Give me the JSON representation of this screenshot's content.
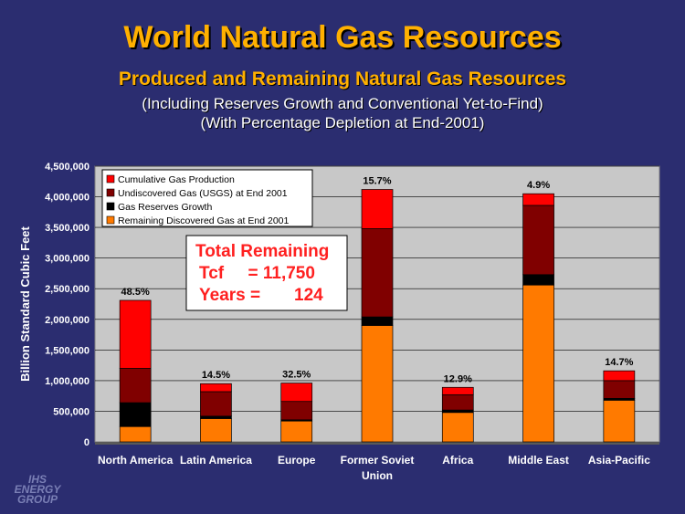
{
  "header": {
    "title": "World Natural Gas Resources",
    "subtitle": "Produced and Remaining Natural Gas Resources",
    "note1": "(Including Reserves Growth and Conventional Yet-to-Find)",
    "note2": "(With Percentage Depletion at End-2001)"
  },
  "logo": {
    "line1": "IHS",
    "line2": "ENERGY",
    "line3": "GROUP"
  },
  "chart_data": {
    "type": "bar",
    "stacked": true,
    "ylabel": "Billion Standard Cubic Feet",
    "ylim": [
      0,
      4500000
    ],
    "yticks": [
      0,
      500000,
      1000000,
      1500000,
      2000000,
      2500000,
      3000000,
      3500000,
      4000000,
      4500000
    ],
    "ytick_labels": [
      "0",
      "500,000",
      "1,000,000",
      "1,500,000",
      "2,000,000",
      "2,500,000",
      "3,000,000",
      "3,500,000",
      "4,000,000",
      "4,500,000"
    ],
    "grid": true,
    "legend_position": "top-left",
    "categories": [
      [
        "North America"
      ],
      [
        "Latin America"
      ],
      [
        "Europe"
      ],
      [
        "Former Soviet",
        "Union"
      ],
      [
        "Africa"
      ],
      [
        "Middle East"
      ],
      [
        "Asia-Pacific"
      ]
    ],
    "series": [
      {
        "name": "Remaining Discovered Gas at End 2001",
        "color": "#ff7a00",
        "values": [
          250000,
          380000,
          340000,
          1900000,
          480000,
          2560000,
          680000
        ]
      },
      {
        "name": "Gas Reserves Growth",
        "color": "#000000",
        "values": [
          390000,
          40000,
          20000,
          140000,
          40000,
          170000,
          30000
        ]
      },
      {
        "name": "Undiscovered Gas (USGS) at End 2001",
        "color": "#800000",
        "values": [
          560000,
          400000,
          300000,
          1440000,
          250000,
          1130000,
          290000
        ]
      },
      {
        "name": "Cumulative Gas Production",
        "color": "#ff0000",
        "values": [
          1110000,
          130000,
          300000,
          640000,
          120000,
          190000,
          160000
        ]
      }
    ],
    "legend_order": [
      3,
      2,
      1,
      0
    ],
    "depletion_labels": [
      "48.5%",
      "14.5%",
      "32.5%",
      "15.7%",
      "12.9%",
      "4.9%",
      "14.7%"
    ],
    "annotation": {
      "line1": "Total Remaining",
      "line2": "Tcf     = 11,750",
      "line3": "Years =       124"
    }
  }
}
